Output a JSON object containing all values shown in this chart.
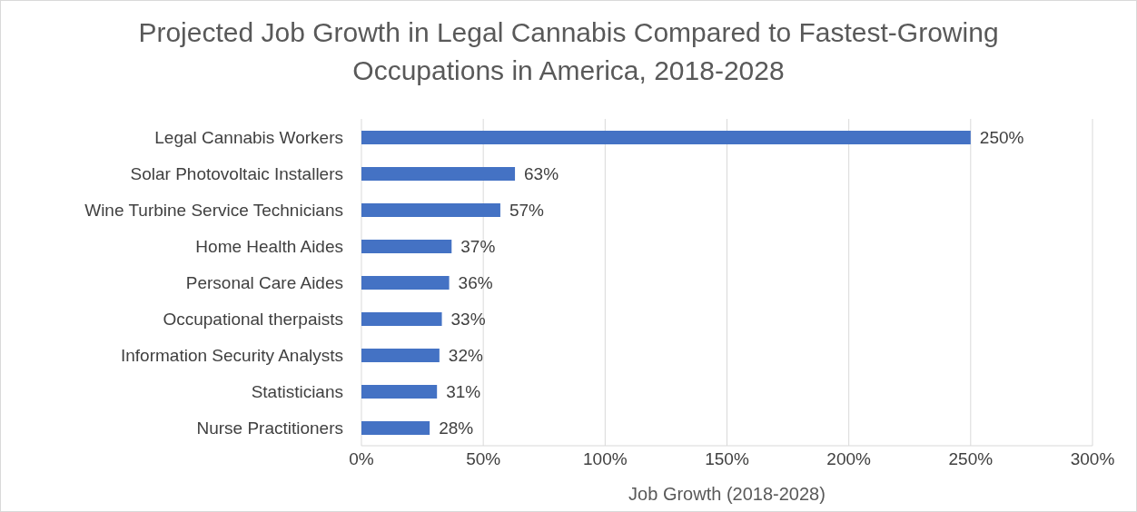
{
  "chart_data": {
    "type": "bar",
    "orientation": "horizontal",
    "title": "Projected Job Growth in Legal Cannabis Compared to Fastest-Growing Occupations in America, 2018-2028",
    "xlabel": "Job Growth (2018-2028)",
    "categories": [
      "Legal Cannabis Workers",
      "Solar Photovoltaic Installers",
      "Wine Turbine Service Technicians",
      "Home Health Aides",
      "Personal Care Aides",
      "Occupational therpaists",
      "Information Security Analysts",
      "Statisticians",
      "Nurse Practitioners"
    ],
    "values": [
      250,
      63,
      57,
      37,
      36,
      33,
      32,
      31,
      28
    ],
    "value_labels": [
      "250%",
      "63%",
      "57%",
      "37%",
      "36%",
      "33%",
      "32%",
      "31%",
      "28%"
    ],
    "color": "#4472c4",
    "xlim": [
      0,
      300
    ],
    "xticks": [
      {
        "value": 0,
        "label": "0%"
      },
      {
        "value": 50,
        "label": "50%"
      },
      {
        "value": 100,
        "label": "100%"
      },
      {
        "value": 150,
        "label": "150%"
      },
      {
        "value": 200,
        "label": "200%"
      },
      {
        "value": 250,
        "label": "250%"
      },
      {
        "value": 300,
        "label": "300%"
      }
    ],
    "grid": "x"
  }
}
